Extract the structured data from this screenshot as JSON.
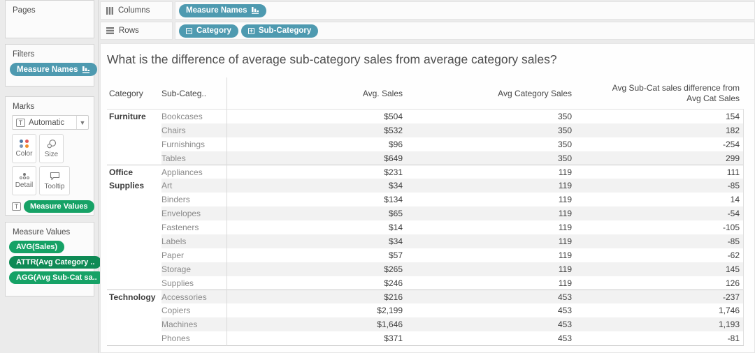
{
  "colors": {
    "dimension_pill": "#4e9ab0",
    "measure_pill": "#16a266",
    "measure_pill_dark": "#0e8a55",
    "row_band": "#f2f2f2"
  },
  "shelves": {
    "columns": {
      "label": "Columns",
      "pills": [
        {
          "label": "Measure Names",
          "icon": "sort-descending-icon"
        }
      ]
    },
    "rows": {
      "label": "Rows",
      "pills": [
        {
          "label": "Category",
          "icon": "collapse-minus-icon"
        },
        {
          "label": "Sub-Category",
          "icon": "expand-plus-icon"
        }
      ]
    }
  },
  "sidebar": {
    "pages": {
      "title": "Pages"
    },
    "filters": {
      "title": "Filters",
      "pills": [
        {
          "label": "Measure Names",
          "icon": "sort-descending-icon"
        }
      ]
    },
    "marks": {
      "title": "Marks",
      "mark_type": "Automatic",
      "buttons": [
        {
          "label": "Color",
          "icon": "color-dots-icon"
        },
        {
          "label": "Size",
          "icon": "size-circles-icon"
        },
        {
          "label": "Text",
          "icon": "text-icon"
        },
        {
          "label": "Detail",
          "icon": "detail-dots-icon"
        },
        {
          "label": "Tooltip",
          "icon": "tooltip-bubble-icon"
        }
      ],
      "text_target_pill": "Measure Values"
    },
    "measure_values": {
      "title": "Measure Values",
      "pills": [
        {
          "label": "AVG(Sales)",
          "color": "#16a266"
        },
        {
          "label": "ATTR(Avg Category ..",
          "color": "#0e8a55"
        },
        {
          "label": "AGG(Avg Sub-Cat sa..",
          "color": "#16a266"
        }
      ]
    }
  },
  "view": {
    "title": "What is the difference of average sub-category sales from average category sales?",
    "table": {
      "headers": {
        "category": "Category",
        "subcategory": "Sub-Categ..",
        "avg_sales": "Avg. Sales",
        "avg_category_sales": "Avg Category Sales",
        "diff_line1": "Avg Sub-Cat sales difference from",
        "diff_line2": "Avg Cat Sales"
      },
      "groups": [
        {
          "category": "Furniture",
          "cat_lines": [
            "Furniture"
          ],
          "rows": [
            [
              "Bookcases",
              "$504",
              "350",
              "154"
            ],
            [
              "Chairs",
              "$532",
              "350",
              "182"
            ],
            [
              "Furnishings",
              "$96",
              "350",
              "-254"
            ],
            [
              "Tables",
              "$649",
              "350",
              "299"
            ]
          ]
        },
        {
          "category": "Office Supplies",
          "cat_lines": [
            "Office",
            "Supplies"
          ],
          "rows": [
            [
              "Appliances",
              "$231",
              "119",
              "111"
            ],
            [
              "Art",
              "$34",
              "119",
              "-85"
            ],
            [
              "Binders",
              "$134",
              "119",
              "14"
            ],
            [
              "Envelopes",
              "$65",
              "119",
              "-54"
            ],
            [
              "Fasteners",
              "$14",
              "119",
              "-105"
            ],
            [
              "Labels",
              "$34",
              "119",
              "-85"
            ],
            [
              "Paper",
              "$57",
              "119",
              "-62"
            ],
            [
              "Storage",
              "$265",
              "119",
              "145"
            ],
            [
              "Supplies",
              "$246",
              "119",
              "126"
            ]
          ]
        },
        {
          "category": "Technology",
          "cat_lines": [
            "Technology"
          ],
          "rows": [
            [
              "Accessories",
              "$216",
              "453",
              "-237"
            ],
            [
              "Copiers",
              "$2,199",
              "453",
              "1,746"
            ],
            [
              "Machines",
              "$1,646",
              "453",
              "1,193"
            ],
            [
              "Phones",
              "$371",
              "453",
              "-81"
            ]
          ]
        }
      ]
    }
  }
}
